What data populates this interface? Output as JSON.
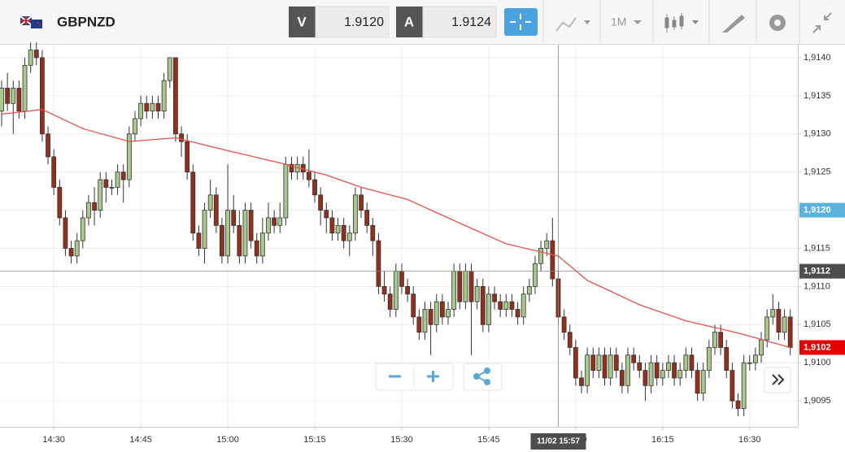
{
  "toolbar": {
    "symbol": "GBPNZD",
    "bid_label": "V",
    "bid": "1.9120",
    "ask_label": "A",
    "ask": "1.9124",
    "interval": "1M"
  },
  "chart_data": {
    "type": "candlestick",
    "up_color": "#a7c98b",
    "down_color": "#93301c",
    "grid": true,
    "ylim": [
      1.90916,
      1.91417
    ],
    "yticks": [
      {
        "value": 1.9095,
        "label": "1,9095"
      },
      {
        "value": 1.91,
        "label": "1,9100"
      },
      {
        "value": 1.9105,
        "label": "1,9105"
      },
      {
        "value": 1.911,
        "label": "1,9110"
      },
      {
        "value": 1.9115,
        "label": "1,9115"
      },
      {
        "value": 1.912,
        "label": "1,9120"
      },
      {
        "value": 1.9125,
        "label": "1,9125"
      },
      {
        "value": 1.913,
        "label": "1,9130"
      },
      {
        "value": 1.9135,
        "label": "1,9135"
      },
      {
        "value": 1.914,
        "label": "1,9140"
      }
    ],
    "xticks": [
      "14:30",
      "14:45",
      "15:00",
      "15:15",
      "15:30",
      "15:45",
      "16:00",
      "16:15",
      "16:30"
    ],
    "x": [
      "14:21",
      "14:22",
      "14:23",
      "14:24",
      "14:25",
      "14:26",
      "14:27",
      "14:28",
      "14:29",
      "14:30",
      "14:31",
      "14:32",
      "14:33",
      "14:34",
      "14:35",
      "14:36",
      "14:37",
      "14:38",
      "14:39",
      "14:40",
      "14:41",
      "14:42",
      "14:43",
      "14:44",
      "14:45",
      "14:46",
      "14:47",
      "14:48",
      "14:49",
      "14:50",
      "14:51",
      "14:52",
      "14:53",
      "14:54",
      "14:55",
      "14:56",
      "14:57",
      "14:58",
      "14:59",
      "15:00",
      "15:01",
      "15:02",
      "15:03",
      "15:04",
      "15:05",
      "15:06",
      "15:07",
      "15:08",
      "15:09",
      "15:10",
      "15:11",
      "15:12",
      "15:13",
      "15:14",
      "15:15",
      "15:16",
      "15:17",
      "15:18",
      "15:19",
      "15:20",
      "15:21",
      "15:22",
      "15:23",
      "15:24",
      "15:25",
      "15:26",
      "15:27",
      "15:28",
      "15:29",
      "15:30",
      "15:31",
      "15:32",
      "15:33",
      "15:34",
      "15:35",
      "15:36",
      "15:37",
      "15:38",
      "15:39",
      "15:40",
      "15:41",
      "15:42",
      "15:43",
      "15:44",
      "15:45",
      "15:46",
      "15:47",
      "15:48",
      "15:49",
      "15:50",
      "15:51",
      "15:52",
      "15:53",
      "15:54",
      "15:55",
      "15:56",
      "15:57",
      "15:58",
      "15:59",
      "16:00",
      "16:01",
      "16:02",
      "16:03",
      "16:04",
      "16:05",
      "16:06",
      "16:07",
      "16:08",
      "16:09",
      "16:10",
      "16:11",
      "16:12",
      "16:13",
      "16:14",
      "16:15",
      "16:16",
      "16:17",
      "16:18",
      "16:19",
      "16:20",
      "16:21",
      "16:22",
      "16:23",
      "16:24",
      "16:25",
      "16:26",
      "16:27",
      "16:28",
      "16:29",
      "16:30",
      "16:31",
      "16:32",
      "16:33",
      "16:34",
      "16:35",
      "16:36",
      "16:37"
    ],
    "ohlc": [
      [
        1.9133,
        1.9137,
        1.9131,
        1.9136
      ],
      [
        1.9136,
        1.9138,
        1.9133,
        1.9134
      ],
      [
        1.9134,
        1.9137,
        1.913,
        1.9136
      ],
      [
        1.9136,
        1.9137,
        1.9132,
        1.9133
      ],
      [
        1.9133,
        1.914,
        1.9132,
        1.9139
      ],
      [
        1.9139,
        1.9142,
        1.9138,
        1.9141
      ],
      [
        1.9141,
        1.9142,
        1.9139,
        1.914
      ],
      [
        1.914,
        1.9141,
        1.9129,
        1.913
      ],
      [
        1.913,
        1.9131,
        1.9126,
        1.9127
      ],
      [
        1.9127,
        1.9128,
        1.9122,
        1.9123
      ],
      [
        1.9123,
        1.9124,
        1.9118,
        1.9119
      ],
      [
        1.9119,
        1.912,
        1.9114,
        1.9115
      ],
      [
        1.9115,
        1.9116,
        1.9113,
        1.9114
      ],
      [
        1.9114,
        1.9117,
        1.9113,
        1.9116
      ],
      [
        1.9116,
        1.912,
        1.9115,
        1.9119
      ],
      [
        1.9119,
        1.9122,
        1.9118,
        1.9121
      ],
      [
        1.9121,
        1.9123,
        1.9118,
        1.912
      ],
      [
        1.912,
        1.9125,
        1.9119,
        1.9124
      ],
      [
        1.9124,
        1.9125,
        1.9121,
        1.9123
      ],
      [
        1.9123,
        1.9124,
        1.9122,
        1.9123
      ],
      [
        1.9123,
        1.9126,
        1.9122,
        1.9125
      ],
      [
        1.9125,
        1.9126,
        1.9121,
        1.9124
      ],
      [
        1.9124,
        1.9131,
        1.9123,
        1.913
      ],
      [
        1.913,
        1.9133,
        1.9129,
        1.9132
      ],
      [
        1.9132,
        1.9135,
        1.9131,
        1.9134
      ],
      [
        1.9134,
        1.9135,
        1.9132,
        1.9133
      ],
      [
        1.9133,
        1.9135,
        1.9132,
        1.9134
      ],
      [
        1.9134,
        1.9135,
        1.9132,
        1.9133
      ],
      [
        1.9133,
        1.9138,
        1.9132,
        1.9137
      ],
      [
        1.9137,
        1.914,
        1.9136,
        1.914
      ],
      [
        1.914,
        1.914,
        1.9129,
        1.913
      ],
      [
        1.913,
        1.9131,
        1.9127,
        1.9129
      ],
      [
        1.9129,
        1.913,
        1.9124,
        1.9125
      ],
      [
        1.9125,
        1.9126,
        1.9116,
        1.9117
      ],
      [
        1.9117,
        1.9118,
        1.9114,
        1.9115
      ],
      [
        1.9115,
        1.9121,
        1.9113,
        1.912
      ],
      [
        1.912,
        1.9124,
        1.9119,
        1.9122
      ],
      [
        1.9122,
        1.9123,
        1.9117,
        1.9118
      ],
      [
        1.9118,
        1.9119,
        1.9113,
        1.9114
      ],
      [
        1.9114,
        1.9126,
        1.9113,
        1.912
      ],
      [
        1.912,
        1.9122,
        1.9117,
        1.9118
      ],
      [
        1.9118,
        1.912,
        1.9113,
        1.9114
      ],
      [
        1.9114,
        1.9121,
        1.9113,
        1.912
      ],
      [
        1.912,
        1.9121,
        1.9115,
        1.9116
      ],
      [
        1.9116,
        1.9117,
        1.9113,
        1.9114
      ],
      [
        1.9114,
        1.9119,
        1.9113,
        1.9117
      ],
      [
        1.9117,
        1.9121,
        1.9116,
        1.9119
      ],
      [
        1.9119,
        1.912,
        1.9117,
        1.9118
      ],
      [
        1.9118,
        1.9121,
        1.9117,
        1.9119
      ],
      [
        1.9119,
        1.9127,
        1.9118,
        1.9126
      ],
      [
        1.9126,
        1.9127,
        1.9124,
        1.9125
      ],
      [
        1.9125,
        1.9127,
        1.9124,
        1.9126
      ],
      [
        1.9126,
        1.9127,
        1.9124,
        1.9125
      ],
      [
        1.9125,
        1.9128,
        1.9123,
        1.9124
      ],
      [
        1.9124,
        1.9125,
        1.9121,
        1.9122
      ],
      [
        1.9122,
        1.9123,
        1.9118,
        1.912
      ],
      [
        1.912,
        1.9121,
        1.9117,
        1.9119
      ],
      [
        1.9119,
        1.912,
        1.9116,
        1.9117
      ],
      [
        1.9117,
        1.9119,
        1.9116,
        1.9118
      ],
      [
        1.9118,
        1.9119,
        1.9115,
        1.9116
      ],
      [
        1.9116,
        1.9118,
        1.9114,
        1.9117
      ],
      [
        1.9117,
        1.9123,
        1.9116,
        1.9122
      ],
      [
        1.9122,
        1.9123,
        1.9119,
        1.912
      ],
      [
        1.912,
        1.9121,
        1.9117,
        1.9118
      ],
      [
        1.9118,
        1.9119,
        1.9114,
        1.9116
      ],
      [
        1.9116,
        1.9117,
        1.9109,
        1.911
      ],
      [
        1.911,
        1.9112,
        1.9108,
        1.9109
      ],
      [
        1.9109,
        1.911,
        1.9106,
        1.9107
      ],
      [
        1.9107,
        1.9113,
        1.9106,
        1.9112
      ],
      [
        1.9112,
        1.9113,
        1.9109,
        1.911
      ],
      [
        1.911,
        1.9111,
        1.9108,
        1.9109
      ],
      [
        1.9109,
        1.911,
        1.9105,
        1.9106
      ],
      [
        1.9106,
        1.9107,
        1.9103,
        1.9104
      ],
      [
        1.9104,
        1.9108,
        1.9103,
        1.9107
      ],
      [
        1.9107,
        1.9108,
        1.9101,
        1.9105
      ],
      [
        1.9105,
        1.9109,
        1.9104,
        1.9108
      ],
      [
        1.9108,
        1.9109,
        1.9105,
        1.9106
      ],
      [
        1.9106,
        1.9108,
        1.9105,
        1.9107
      ],
      [
        1.9107,
        1.9113,
        1.9106,
        1.9112
      ],
      [
        1.9112,
        1.9113,
        1.9107,
        1.9108
      ],
      [
        1.9108,
        1.9113,
        1.9107,
        1.9112
      ],
      [
        1.9112,
        1.9113,
        1.9101,
        1.9108
      ],
      [
        1.9108,
        1.9111,
        1.9107,
        1.911
      ],
      [
        1.911,
        1.9111,
        1.9104,
        1.9105
      ],
      [
        1.9105,
        1.911,
        1.9104,
        1.9109
      ],
      [
        1.9109,
        1.911,
        1.9107,
        1.9108
      ],
      [
        1.9108,
        1.9109,
        1.9106,
        1.9107
      ],
      [
        1.9107,
        1.9109,
        1.9106,
        1.9108
      ],
      [
        1.9108,
        1.9109,
        1.9106,
        1.9107
      ],
      [
        1.9107,
        1.9108,
        1.9105,
        1.9106
      ],
      [
        1.9106,
        1.911,
        1.9105,
        1.9109
      ],
      [
        1.9109,
        1.9111,
        1.9108,
        1.911
      ],
      [
        1.911,
        1.9114,
        1.9109,
        1.9113
      ],
      [
        1.9113,
        1.9116,
        1.9112,
        1.9115
      ],
      [
        1.9115,
        1.9117,
        1.9114,
        1.9116
      ],
      [
        1.9116,
        1.9119,
        1.911,
        1.9111
      ],
      [
        1.9111,
        1.9112,
        1.9105,
        1.9106
      ],
      [
        1.9106,
        1.9107,
        1.9103,
        1.9104
      ],
      [
        1.9104,
        1.9105,
        1.9101,
        1.9102
      ],
      [
        1.9102,
        1.9103,
        1.9097,
        1.9098
      ],
      [
        1.9098,
        1.9099,
        1.9096,
        1.9097
      ],
      [
        1.9097,
        1.9102,
        1.9096,
        1.9101
      ],
      [
        1.9101,
        1.9102,
        1.9098,
        1.9099
      ],
      [
        1.9099,
        1.9102,
        1.9098,
        1.9101
      ],
      [
        1.9101,
        1.9102,
        1.9097,
        1.9098
      ],
      [
        1.9098,
        1.9102,
        1.9097,
        1.9101
      ],
      [
        1.9101,
        1.9102,
        1.9098,
        1.9099
      ],
      [
        1.9099,
        1.91,
        1.9096,
        1.9097
      ],
      [
        1.9097,
        1.9102,
        1.9096,
        1.9101
      ],
      [
        1.9101,
        1.9102,
        1.9099,
        1.91
      ],
      [
        1.91,
        1.9101,
        1.9098,
        1.9099
      ],
      [
        1.9099,
        1.91,
        1.9095,
        1.9097
      ],
      [
        1.9097,
        1.9101,
        1.9096,
        1.91
      ],
      [
        1.91,
        1.9101,
        1.9097,
        1.9098
      ],
      [
        1.9098,
        1.91,
        1.9097,
        1.9099
      ],
      [
        1.9099,
        1.9101,
        1.9098,
        1.91
      ],
      [
        1.91,
        1.9101,
        1.9097,
        1.9098
      ],
      [
        1.9098,
        1.91,
        1.9097,
        1.9099
      ],
      [
        1.9099,
        1.9102,
        1.9098,
        1.9101
      ],
      [
        1.9101,
        1.9102,
        1.9098,
        1.9099
      ],
      [
        1.9099,
        1.91,
        1.9095,
        1.9096
      ],
      [
        1.9096,
        1.91,
        1.9095,
        1.9099
      ],
      [
        1.9099,
        1.9103,
        1.9098,
        1.9102
      ],
      [
        1.9102,
        1.9105,
        1.9101,
        1.9104
      ],
      [
        1.9104,
        1.9105,
        1.9101,
        1.9102
      ],
      [
        1.9102,
        1.9103,
        1.9098,
        1.9099
      ],
      [
        1.9099,
        1.91,
        1.9094,
        1.9095
      ],
      [
        1.9095,
        1.9096,
        1.9093,
        1.9094
      ],
      [
        1.9094,
        1.9101,
        1.9093,
        1.91
      ],
      [
        1.91,
        1.9101,
        1.9099,
        1.91
      ],
      [
        1.91,
        1.9102,
        1.9099,
        1.9101
      ],
      [
        1.9101,
        1.9104,
        1.91,
        1.9103
      ],
      [
        1.9103,
        1.9107,
        1.9102,
        1.9106
      ],
      [
        1.9106,
        1.9109,
        1.9105,
        1.9107
      ],
      [
        1.9107,
        1.9108,
        1.9103,
        1.9104
      ],
      [
        1.9104,
        1.9107,
        1.9103,
        1.9106
      ],
      [
        1.9106,
        1.9107,
        1.9101,
        1.9102
      ]
    ],
    "ma": {
      "color": "#e8524a",
      "x": [
        "14:21",
        "14:28",
        "14:35",
        "14:43",
        "14:51",
        "15:00",
        "15:09",
        "15:17",
        "15:23",
        "15:31",
        "15:40",
        "15:48",
        "15:57",
        "16:02",
        "16:11",
        "16:19",
        "16:28",
        "16:37"
      ],
      "values": [
        1.91326,
        1.91332,
        1.91307,
        1.9129,
        1.91295,
        1.91278,
        1.91262,
        1.91246,
        1.9123,
        1.91214,
        1.91183,
        1.91156,
        1.9114,
        1.91108,
        1.91076,
        1.91055,
        1.91039,
        1.9102
      ]
    },
    "price_tags": [
      {
        "value": 1.912,
        "label": "1,9120",
        "color": "#5ab3de"
      },
      {
        "value": 1.9102,
        "label": "1,9102",
        "color": "#e60000"
      }
    ],
    "crosshair": {
      "x": "15:57",
      "value": 1.9112,
      "price_label": "1,9112",
      "time_label": "11/02 15:57"
    }
  }
}
